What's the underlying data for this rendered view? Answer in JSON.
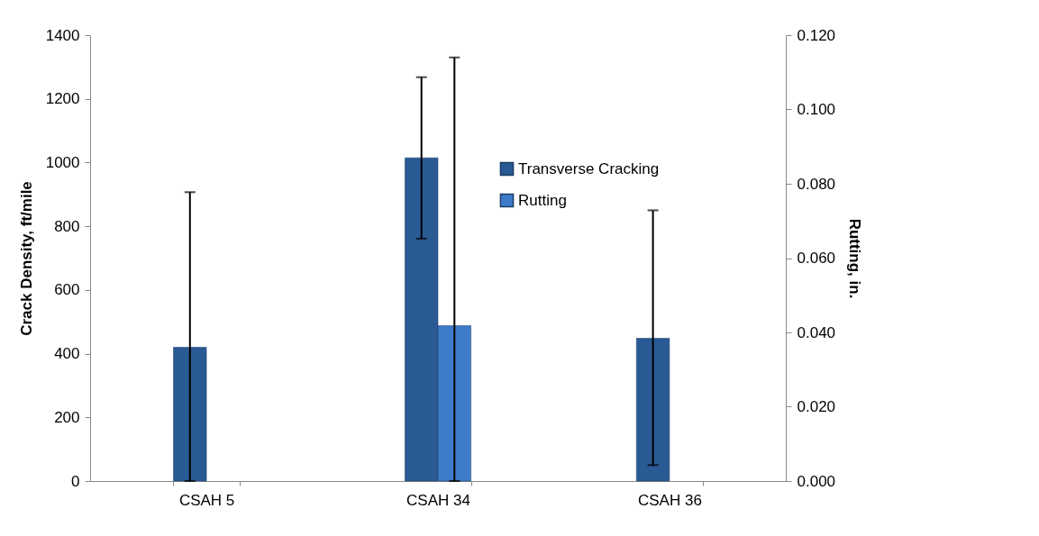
{
  "chart_data": {
    "type": "bar",
    "categories": [
      "CSAH 5",
      "CSAH 34",
      "CSAH 36"
    ],
    "ylabel": "Crack Density, ft/mile",
    "y2label": "Rutting, in.",
    "ylim": [
      0,
      1400
    ],
    "yticks": [
      0,
      200,
      400,
      600,
      800,
      1000,
      1200,
      1400
    ],
    "y2lim": [
      0,
      0.12
    ],
    "y2ticks": [
      {
        "value": 0,
        "label": "0.000"
      },
      {
        "value": 0.02,
        "label": "0.020"
      },
      {
        "value": 0.04,
        "label": "0.040"
      },
      {
        "value": 0.06,
        "label": "0.060"
      },
      {
        "value": 0.08,
        "label": "0.080"
      },
      {
        "value": 0.1,
        "label": "0.100"
      },
      {
        "value": 0.12,
        "label": "0.120"
      }
    ],
    "series": [
      {
        "name": "Transverse Cracking",
        "color": "#2a5a94",
        "values": [
          420,
          1015,
          448
        ],
        "errors": [
          [
            0,
            907
          ],
          [
            761,
            1268
          ],
          [
            50,
            850
          ]
        ]
      },
      {
        "name": "Rutting",
        "color": "#3d7cc9",
        "axis": "y2",
        "values": [
          null,
          0.0418,
          null
        ],
        "errors": [
          null,
          [
            0,
            0.114
          ],
          null
        ]
      }
    ],
    "legend": "top right",
    "grid": false
  }
}
